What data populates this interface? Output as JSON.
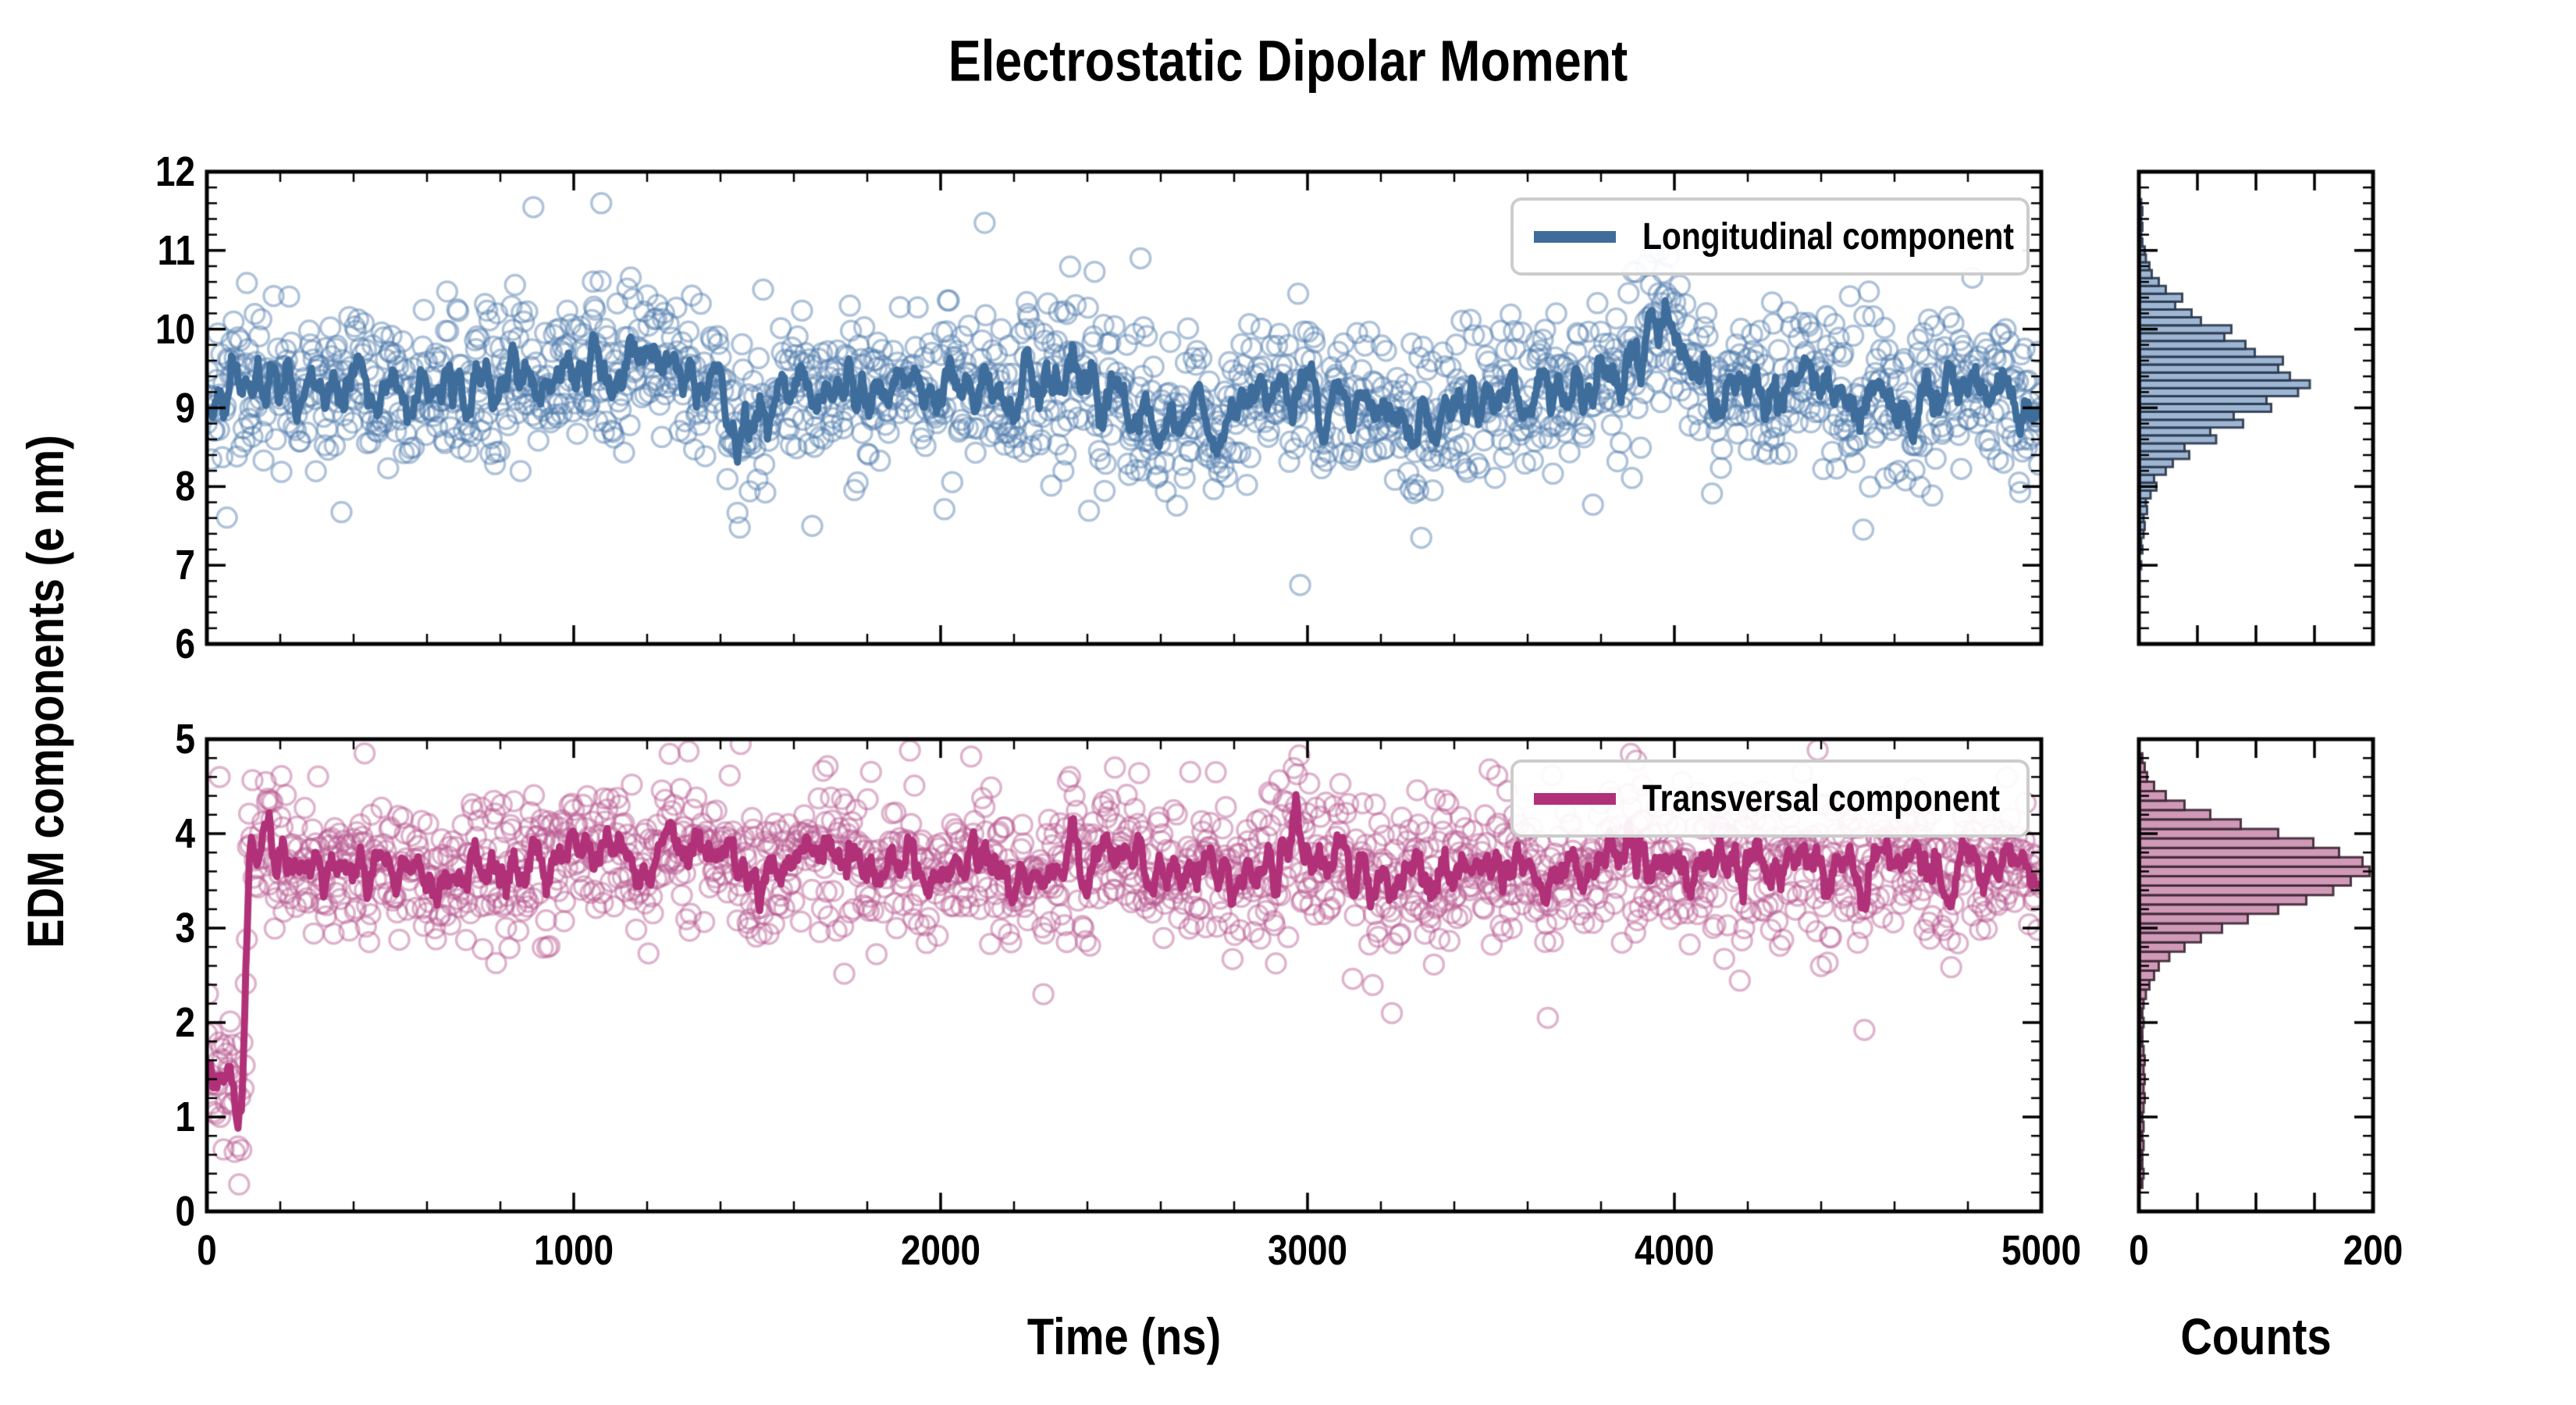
{
  "title": "Electrostatic Dipolar Moment",
  "axes": {
    "x_label": "Time (ns)",
    "y_label": "EDM components (e nm)",
    "counts_label": "Counts",
    "main_x_ticks": [
      0,
      1000,
      2000,
      3000,
      4000,
      5000
    ],
    "x_minor_step": 200,
    "top_y_ticks": [
      12,
      11,
      10,
      9,
      8,
      7,
      6
    ],
    "bottom_y_ticks": [
      5,
      4,
      3,
      2,
      1,
      0
    ],
    "y_minor_step": 0.2,
    "hist_x_tick_labels": [
      0,
      200
    ],
    "hist_x_ticks": [
      0,
      50,
      100,
      150,
      200
    ]
  },
  "legend": {
    "longitudinal": "Longitudinal component",
    "transversal": "Transversal component"
  },
  "colors": {
    "longitudinal_line": "#3E6D9C",
    "longitudinal_scatter": "rgba(77,122,170,0.45)",
    "longitudinal_hist_fill": "#9CB6D4",
    "longitudinal_hist_edge": "rgba(42,54,74,0.9)",
    "transversal_line": "#B03178",
    "transversal_scatter": "rgba(184,88,145,0.45)",
    "transversal_hist_fill": "#D099B8",
    "transversal_hist_edge": "rgba(59,38,51,0.9)",
    "axis": "#000000",
    "legend_border": "#cccccc"
  },
  "chart_data": [
    {
      "id": "longitudinal_timeseries",
      "type": "scatter",
      "series_name": "Longitudinal component",
      "x_range": [
        0,
        5000
      ],
      "y_range": [
        6,
        12
      ],
      "n_points": 1650,
      "scatter_std": 0.52,
      "mean_anchors": [
        [
          0,
          9.3
        ],
        [
          250,
          9.35
        ],
        [
          500,
          9.15
        ],
        [
          800,
          9.3
        ],
        [
          1000,
          9.45
        ],
        [
          1250,
          9.55
        ],
        [
          1450,
          9.1
        ],
        [
          1700,
          9.25
        ],
        [
          1950,
          9.4
        ],
        [
          2150,
          9.2
        ],
        [
          2350,
          9.35
        ],
        [
          2550,
          9.0
        ],
        [
          2750,
          8.75
        ],
        [
          2900,
          9.3
        ],
        [
          3100,
          9.0
        ],
        [
          3350,
          8.8
        ],
        [
          3550,
          9.15
        ],
        [
          3800,
          9.3
        ],
        [
          3990,
          9.85
        ],
        [
          4150,
          9.05
        ],
        [
          4400,
          9.2
        ],
        [
          4600,
          9.0
        ],
        [
          4800,
          9.3
        ],
        [
          5000,
          8.95
        ]
      ],
      "outliers": [
        [
          890,
          11.55
        ],
        [
          1075,
          11.6
        ],
        [
          2120,
          11.35
        ],
        [
          2545,
          10.9
        ],
        [
          3960,
          11.0
        ],
        [
          2980,
          6.75
        ],
        [
          3310,
          7.35
        ],
        [
          1650,
          7.5
        ]
      ],
      "line": "running_average_window_7",
      "clip": [
        6.55,
        11.9
      ]
    },
    {
      "id": "transversal_timeseries",
      "type": "scatter",
      "series_name": "Transversal component",
      "x_range": [
        0,
        5000
      ],
      "y_range": [
        0,
        5
      ],
      "n_points": 1650,
      "scatter_std": 0.4,
      "std_segments": [
        [
          0,
          95,
          0.42
        ],
        [
          95,
          140,
          0.3
        ],
        [
          140,
          5000,
          0.4
        ]
      ],
      "mean_anchors": [
        [
          0,
          1.6
        ],
        [
          40,
          1.4
        ],
        [
          70,
          1.25
        ],
        [
          88,
          1.05
        ],
        [
          100,
          1.8
        ],
        [
          112,
          3.6
        ],
        [
          122,
          4.0
        ],
        [
          140,
          3.8
        ],
        [
          250,
          3.7
        ],
        [
          450,
          3.6
        ],
        [
          650,
          3.5
        ],
        [
          850,
          3.75
        ],
        [
          1050,
          3.7
        ],
        [
          1250,
          3.85
        ],
        [
          1450,
          3.6
        ],
        [
          1650,
          3.85
        ],
        [
          1850,
          3.55
        ],
        [
          2050,
          3.7
        ],
        [
          2250,
          3.5
        ],
        [
          2450,
          3.85
        ],
        [
          2650,
          3.55
        ],
        [
          2850,
          3.6
        ],
        [
          3050,
          3.7
        ],
        [
          3250,
          3.45
        ],
        [
          3450,
          3.7
        ],
        [
          3650,
          3.55
        ],
        [
          3850,
          3.7
        ],
        [
          4050,
          3.6
        ],
        [
          4250,
          3.65
        ],
        [
          4450,
          3.55
        ],
        [
          4650,
          3.7
        ],
        [
          4850,
          3.55
        ],
        [
          5000,
          3.65
        ]
      ],
      "outliers": [
        [
          35,
          4.6
        ],
        [
          430,
          4.85
        ],
        [
          1455,
          4.95
        ],
        [
          2475,
          4.7
        ],
        [
          2750,
          4.65
        ],
        [
          3655,
          2.05
        ],
        [
          3230,
          2.1
        ],
        [
          2280,
          2.3
        ]
      ],
      "line": "running_average_window_7",
      "clip": [
        0.15,
        4.98
      ]
    },
    {
      "id": "longitudinal_histogram",
      "type": "histogram",
      "orientation": "horizontal",
      "x_range": [
        0,
        200
      ],
      "bin_start": 7.0,
      "bin_width": 0.1,
      "counts": [
        1,
        0,
        2,
        1,
        3,
        4,
        3,
        6,
        5,
        9,
        14,
        12,
        22,
        28,
        42,
        38,
        65,
        60,
        88,
        80,
        112,
        108,
        135,
        145,
        128,
        118,
        122,
        98,
        90,
        72,
        78,
        52,
        44,
        30,
        36,
        22,
        16,
        10,
        8,
        5,
        4,
        2,
        1,
        2,
        1,
        2,
        1
      ]
    },
    {
      "id": "transversal_histogram",
      "type": "histogram",
      "orientation": "horizontal",
      "x_range": [
        0,
        200
      ],
      "bin_start": 0.3,
      "bin_width": 0.1,
      "counts": [
        2,
        3,
        2,
        2,
        3,
        2,
        3,
        2,
        3,
        4,
        3,
        4,
        3,
        4,
        3,
        2,
        2,
        3,
        2,
        3,
        5,
        8,
        12,
        16,
        25,
        38,
        52,
        70,
        92,
        118,
        142,
        165,
        180,
        196,
        190,
        170,
        148,
        118,
        86,
        60,
        38,
        22,
        12,
        6,
        4,
        2
      ]
    }
  ]
}
